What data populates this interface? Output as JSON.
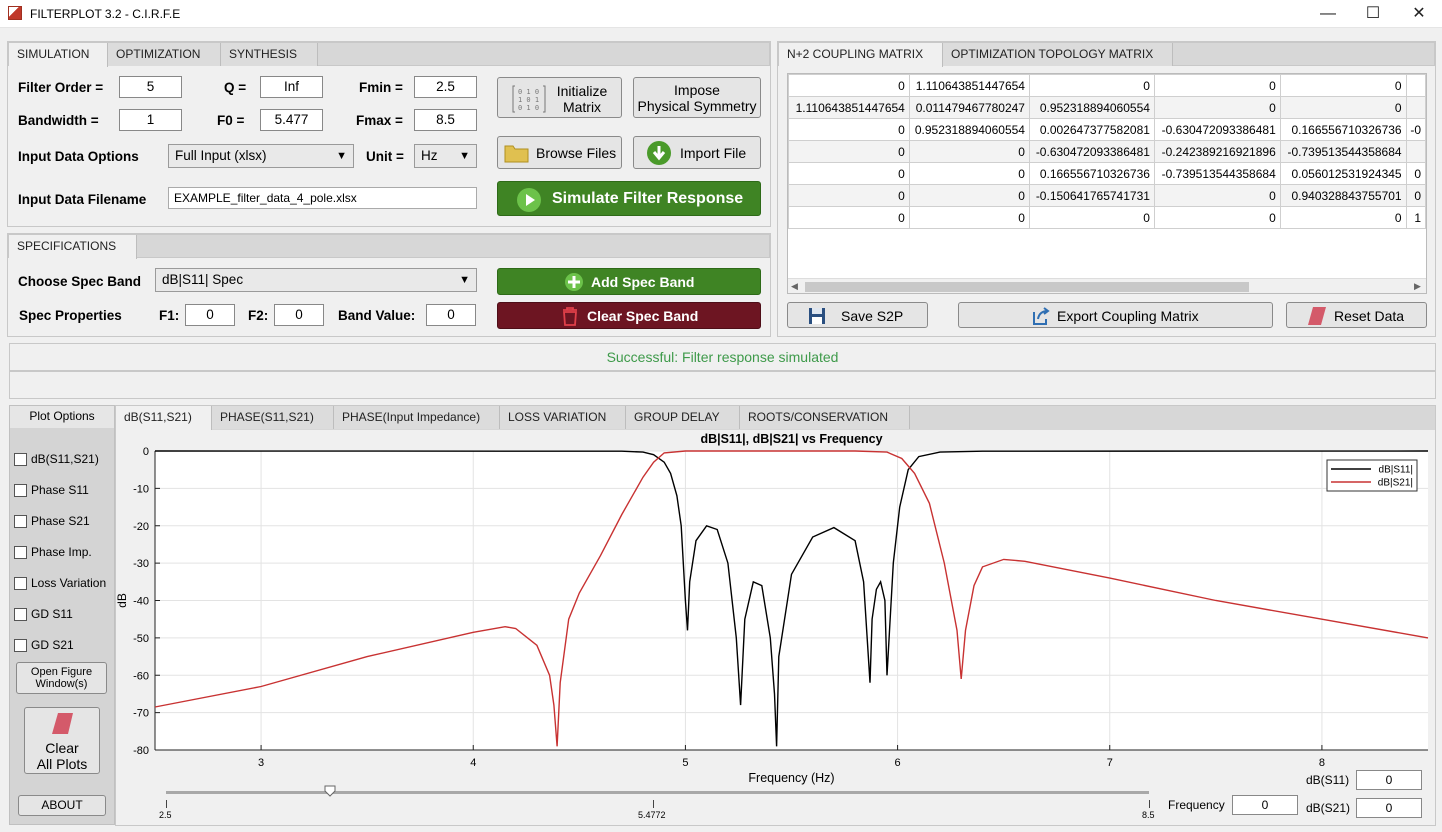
{
  "window": {
    "title": "FILTERPLOT 3.2 - C.I.R.F.E"
  },
  "sim_tabs": [
    "SIMULATION",
    "OPTIMIZATION",
    "SYNTHESIS"
  ],
  "sim": {
    "filter_order_label": "Filter Order =",
    "filter_order": "5",
    "q_label": "Q =",
    "q": "Inf",
    "fmin_label": "Fmin =",
    "fmin": "2.5",
    "bandwidth_label": "Bandwidth  =",
    "bandwidth": "1",
    "f0_label": "F0 =",
    "f0": "5.477",
    "fmax_label": "Fmax =",
    "fmax": "8.5",
    "input_options_label": "Input Data Options",
    "input_option": "Full Input (xlsx)",
    "unit_label": "Unit =",
    "unit": "Hz",
    "filename_label": "Input Data Filename",
    "filename": "EXAMPLE_filter_data_4_pole.xlsx",
    "init_matrix": "Initialize\nMatrix",
    "init_matrix_l1": "Initialize",
    "init_matrix_l2": "Matrix",
    "impose_l1": "Impose",
    "impose_l2": "Physical Symmetry",
    "browse": "Browse Files",
    "import": "Import File",
    "simulate": "Simulate Filter Response"
  },
  "spec": {
    "tab": "SPECIFICATIONS",
    "choose_label": "Choose Spec Band",
    "choose_value": "dB|S11| Spec",
    "props_label": "Spec Properties",
    "f1_label": "F1:",
    "f1": "0",
    "f2_label": "F2:",
    "f2": "0",
    "band_label": "Band Value:",
    "band": "0",
    "add": "Add Spec Band",
    "clear": "Clear Spec Band"
  },
  "matrix_tabs": [
    "N+2 COUPLING MATRIX",
    "OPTIMIZATION TOPOLOGY MATRIX"
  ],
  "matrix_rows": [
    [
      "0",
      "1.110643851447654",
      "0",
      "0",
      "0",
      ""
    ],
    [
      "1.110643851447654",
      "0.011479467780247",
      "0.952318894060554",
      "0",
      "0",
      ""
    ],
    [
      "0",
      "0.952318894060554",
      "0.002647377582081",
      "-0.630472093386481",
      "0.166556710326736",
      "-0"
    ],
    [
      "0",
      "0",
      "-0.630472093386481",
      "-0.242389216921896",
      "-0.739513544358684",
      ""
    ],
    [
      "0",
      "0",
      "0.166556710326736",
      "-0.739513544358684",
      "0.056012531924345",
      "0"
    ],
    [
      "0",
      "0",
      "-0.150641765741731",
      "0",
      "0.940328843755701",
      "0"
    ],
    [
      "0",
      "0",
      "0",
      "0",
      "0",
      "1"
    ]
  ],
  "matrix_buttons": {
    "save": "Save S2P",
    "export": "Export Coupling Matrix",
    "reset": "Reset Data"
  },
  "status": "Successful: Filter response simulated",
  "status_color": "#3e9a4a",
  "plot_options": {
    "title": "Plot Options",
    "items": [
      "dB(S11,S21)",
      "Phase S11",
      "Phase S21",
      "Phase Imp.",
      "Loss Variation",
      "GD S11",
      "GD S21"
    ],
    "open_fig_l1": "Open Figure",
    "open_fig_l2": "Window(s)",
    "clear_l1": "Clear",
    "clear_l2": "All Plots",
    "about": "ABOUT"
  },
  "plot_tabs": [
    "dB(S11,S21)",
    "PHASE(S11,S21)",
    "PHASE(Input Impedance)",
    "LOSS VARIATION",
    "GROUP DELAY",
    "ROOTS/CONSERVATION"
  ],
  "readouts": {
    "s11_label": "dB(S11)",
    "s11": "0",
    "s21_label": "dB(S21)",
    "s21": "0",
    "freq_label": "Frequency",
    "freq": "0"
  },
  "slider": {
    "min": "2.5",
    "mid": "5.4772",
    "max": "8.5",
    "value": 3.5
  },
  "chart_data": {
    "type": "line",
    "title": "dB|S11|, dB|S21| vs Frequency",
    "xlabel": "Frequency (Hz)",
    "ylabel": "dB",
    "xlim": [
      2.5,
      8.5
    ],
    "ylim": [
      -80,
      0
    ],
    "xticks": [
      3,
      4,
      5,
      6,
      7,
      8
    ],
    "yticks": [
      0,
      -10,
      -20,
      -30,
      -40,
      -50,
      -60,
      -70,
      -80
    ],
    "grid": true,
    "legend": "top-right",
    "series": [
      {
        "name": "dB|S11|",
        "color": "#000000",
        "x": [
          2.5,
          4.7,
          4.8,
          4.85,
          4.9,
          4.93,
          4.96,
          4.98,
          5.0,
          5.01,
          5.02,
          5.05,
          5.1,
          5.15,
          5.2,
          5.24,
          5.26,
          5.28,
          5.32,
          5.36,
          5.4,
          5.42,
          5.43,
          5.44,
          5.5,
          5.6,
          5.7,
          5.8,
          5.84,
          5.87,
          5.88,
          5.9,
          5.92,
          5.94,
          5.95,
          5.96,
          5.98,
          6.01,
          6.05,
          6.1,
          6.2,
          6.4,
          8.5
        ],
        "y": [
          0,
          -0.05,
          -0.3,
          -1,
          -3,
          -6,
          -12,
          -20,
          -40,
          -48,
          -35,
          -24,
          -20,
          -21,
          -30,
          -50,
          -68,
          -45,
          -35,
          -36,
          -50,
          -65,
          -79,
          -55,
          -33,
          -23,
          -20.5,
          -24,
          -35,
          -62,
          -45,
          -37,
          -35,
          -40,
          -60,
          -50,
          -30,
          -15,
          -5,
          -1.5,
          -0.3,
          -0.05,
          0
        ]
      },
      {
        "name": "dB|S21|",
        "color": "#c83232",
        "x": [
          2.5,
          3.0,
          3.5,
          4.0,
          4.15,
          4.2,
          4.3,
          4.36,
          4.38,
          4.395,
          4.41,
          4.45,
          4.5,
          4.6,
          4.7,
          4.8,
          4.85,
          4.9,
          5.0,
          5.2,
          5.5,
          5.8,
          5.95,
          6.02,
          6.08,
          6.15,
          6.22,
          6.28,
          6.3,
          6.32,
          6.36,
          6.4,
          6.5,
          6.6,
          7.0,
          7.5,
          8.0,
          8.5
        ],
        "y": [
          -68.5,
          -63,
          -55,
          -48.5,
          -47,
          -47.5,
          -52,
          -60,
          -68,
          -79,
          -62,
          -45,
          -38,
          -28,
          -17,
          -7,
          -3,
          -0.5,
          0,
          0,
          0,
          0,
          -0.3,
          -2,
          -6,
          -14,
          -30,
          -48,
          -61,
          -48,
          -36,
          -31,
          -29,
          -29.5,
          -34,
          -40,
          -45,
          -50
        ]
      }
    ]
  }
}
